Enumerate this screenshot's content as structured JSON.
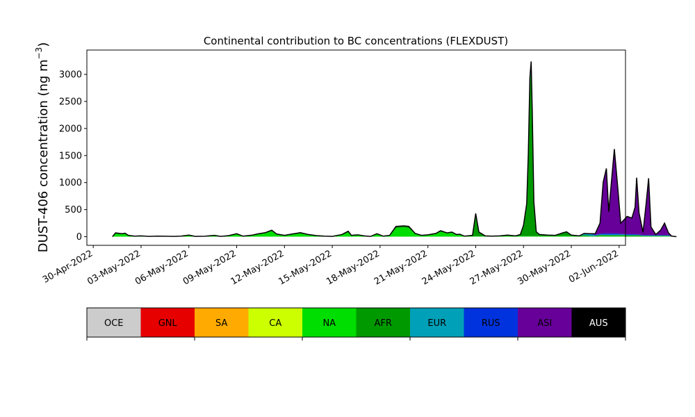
{
  "chart_data": {
    "type": "area",
    "title": "Continental contribution to BC concentrations (FLEXDUST)",
    "ylabel_main": "DUST-406 concentration (ng m",
    "ylabel_exp": "−3",
    "ylabel_close": ")",
    "xlabel": "",
    "x_tick_labels": [
      "30-Apr-2022",
      "03-May-2022",
      "06-May-2022",
      "09-May-2022",
      "12-May-2022",
      "15-May-2022",
      "18-May-2022",
      "21-May-2022",
      "24-May-2022",
      "27-May-2022",
      "30-May-2022",
      "02-Jun-2022"
    ],
    "x_tick_days": [
      0,
      3,
      6,
      9,
      12,
      15,
      18,
      21,
      24,
      27,
      30,
      33
    ],
    "x_range_days": [
      -0.4,
      33.4
    ],
    "y_ticks": [
      0,
      500,
      1000,
      1500,
      2000,
      2500,
      3000
    ],
    "ylim": [
      -160,
      3450
    ],
    "regions": [
      {
        "name": "OCE",
        "color": "#cccccc",
        "label_color": "#000000"
      },
      {
        "name": "GNL",
        "color": "#e60000",
        "label_color": "#000000"
      },
      {
        "name": "SA",
        "color": "#ffaa00",
        "label_color": "#000000"
      },
      {
        "name": "CA",
        "color": "#ccff00",
        "label_color": "#000000"
      },
      {
        "name": "NA",
        "color": "#00dd00",
        "label_color": "#000000"
      },
      {
        "name": "AFR",
        "color": "#009900",
        "label_color": "#000000"
      },
      {
        "name": "EUR",
        "color": "#00a0b8",
        "label_color": "#000000"
      },
      {
        "name": "RUS",
        "color": "#0033dd",
        "label_color": "#000000"
      },
      {
        "name": "ASI",
        "color": "#660099",
        "label_color": "#000000"
      },
      {
        "name": "AUS",
        "color": "#000000",
        "label_color": "#ffffff"
      }
    ],
    "stack_points": [
      [
        1.2,
        0,
        0,
        0,
        0,
        0,
        0,
        0
      ],
      [
        1.4,
        0,
        60,
        10,
        0,
        0,
        0,
        0
      ],
      [
        1.8,
        0,
        45,
        10,
        0,
        0,
        0,
        0
      ],
      [
        2.0,
        0,
        55,
        10,
        0,
        0,
        0,
        0
      ],
      [
        2.2,
        0,
        20,
        5,
        0,
        0,
        0,
        0
      ],
      [
        2.6,
        0,
        10,
        0,
        0,
        0,
        0,
        0
      ],
      [
        3.0,
        0,
        15,
        0,
        0,
        0,
        0,
        0
      ],
      [
        3.5,
        0,
        5,
        0,
        0,
        0,
        0,
        0
      ],
      [
        4.0,
        0,
        10,
        0,
        0,
        0,
        0,
        0
      ],
      [
        4.5,
        0,
        8,
        0,
        0,
        0,
        0,
        0
      ],
      [
        5.0,
        0,
        5,
        0,
        0,
        0,
        0,
        0
      ],
      [
        5.5,
        0,
        10,
        0,
        0,
        0,
        0,
        0
      ],
      [
        6.0,
        0,
        30,
        0,
        0,
        0,
        0,
        0
      ],
      [
        6.4,
        0,
        5,
        0,
        0,
        0,
        0,
        0
      ],
      [
        7.0,
        0,
        8,
        0,
        0,
        0,
        0,
        0
      ],
      [
        7.6,
        0,
        25,
        0,
        0,
        0,
        0,
        0
      ],
      [
        8.0,
        0,
        5,
        0,
        0,
        0,
        0,
        0
      ],
      [
        8.5,
        0,
        20,
        0,
        0,
        0,
        0,
        0
      ],
      [
        9.0,
        0,
        55,
        0,
        0,
        0,
        0,
        0
      ],
      [
        9.4,
        0,
        10,
        0,
        0,
        0,
        0,
        0
      ],
      [
        10.0,
        0,
        20,
        10,
        0,
        0,
        0,
        0
      ],
      [
        10.3,
        0,
        40,
        10,
        0,
        0,
        0,
        0
      ],
      [
        10.8,
        0,
        60,
        15,
        0,
        0,
        0,
        0
      ],
      [
        11.2,
        0,
        100,
        20,
        0,
        0,
        0,
        0
      ],
      [
        11.5,
        0,
        40,
        10,
        0,
        0,
        0,
        0
      ],
      [
        12.0,
        0,
        20,
        5,
        0,
        0,
        0,
        0
      ],
      [
        12.5,
        0,
        40,
        10,
        0,
        0,
        0,
        0
      ],
      [
        13.0,
        0,
        60,
        15,
        0,
        0,
        0,
        0
      ],
      [
        13.5,
        0,
        30,
        10,
        0,
        0,
        0,
        0
      ],
      [
        14.0,
        0,
        15,
        5,
        0,
        0,
        0,
        0
      ],
      [
        14.5,
        0,
        10,
        0,
        0,
        0,
        0,
        0
      ],
      [
        15.0,
        0,
        5,
        0,
        0,
        0,
        0,
        0
      ],
      [
        15.6,
        0,
        30,
        10,
        0,
        0,
        0,
        0
      ],
      [
        16.0,
        0,
        80,
        20,
        0,
        0,
        0,
        0
      ],
      [
        16.2,
        0,
        20,
        5,
        0,
        0,
        0,
        0
      ],
      [
        16.6,
        0,
        30,
        5,
        0,
        0,
        0,
        0
      ],
      [
        17.0,
        0,
        15,
        0,
        0,
        0,
        0,
        0
      ],
      [
        17.4,
        0,
        5,
        0,
        0,
        0,
        0,
        0
      ],
      [
        17.8,
        0,
        45,
        10,
        0,
        0,
        0,
        0
      ],
      [
        18.2,
        0,
        10,
        0,
        0,
        0,
        0,
        0
      ],
      [
        18.6,
        0,
        20,
        5,
        0,
        0,
        0,
        0
      ],
      [
        19.0,
        0,
        160,
        30,
        0,
        0,
        0,
        0
      ],
      [
        19.5,
        0,
        170,
        30,
        0,
        0,
        0,
        0
      ],
      [
        19.8,
        0,
        160,
        30,
        0,
        0,
        0,
        0
      ],
      [
        20.2,
        0,
        50,
        10,
        0,
        0,
        0,
        0
      ],
      [
        20.6,
        0,
        20,
        5,
        0,
        0,
        0,
        0
      ],
      [
        21.0,
        0,
        30,
        5,
        0,
        0,
        0,
        0
      ],
      [
        21.5,
        0,
        50,
        10,
        0,
        0,
        0,
        0
      ],
      [
        21.8,
        0,
        90,
        20,
        0,
        0,
        0,
        0
      ],
      [
        22.2,
        0,
        60,
        10,
        0,
        0,
        0,
        0
      ],
      [
        22.5,
        0,
        70,
        15,
        0,
        0,
        0,
        0
      ],
      [
        22.8,
        0,
        30,
        10,
        0,
        0,
        0,
        0
      ],
      [
        23.0,
        0,
        40,
        5,
        0,
        0,
        0,
        0
      ],
      [
        23.3,
        0,
        10,
        0,
        0,
        0,
        0,
        0
      ],
      [
        23.8,
        0,
        5,
        20,
        0,
        0,
        0,
        0
      ],
      [
        24.0,
        0,
        10,
        420,
        0,
        0,
        0,
        0
      ],
      [
        24.2,
        0,
        5,
        80,
        0,
        0,
        0,
        0
      ],
      [
        24.6,
        0,
        5,
        10,
        0,
        0,
        0,
        0
      ],
      [
        25.0,
        0,
        5,
        5,
        0,
        0,
        0,
        0
      ],
      [
        25.5,
        0,
        5,
        10,
        0,
        0,
        0,
        0
      ],
      [
        26.0,
        0,
        10,
        20,
        0,
        0,
        0,
        0
      ],
      [
        26.5,
        0,
        5,
        10,
        0,
        0,
        0,
        0
      ],
      [
        26.8,
        0,
        10,
        30,
        0,
        0,
        0,
        0
      ],
      [
        27.0,
        0,
        10,
        200,
        0,
        0,
        0,
        0
      ],
      [
        27.2,
        0,
        10,
        600,
        0,
        0,
        0,
        0
      ],
      [
        27.3,
        0,
        10,
        1500,
        10,
        0,
        0,
        0
      ],
      [
        27.4,
        0,
        10,
        2800,
        80,
        50,
        0,
        0
      ],
      [
        27.48,
        0,
        10,
        3050,
        100,
        80,
        0,
        0
      ],
      [
        27.55,
        0,
        10,
        2200,
        50,
        50,
        0,
        0
      ],
      [
        27.65,
        0,
        10,
        600,
        20,
        10,
        0,
        0
      ],
      [
        27.8,
        0,
        10,
        80,
        0,
        0,
        0,
        0
      ],
      [
        28.0,
        0,
        10,
        30,
        0,
        0,
        0,
        0
      ],
      [
        28.5,
        0,
        10,
        20,
        0,
        0,
        0,
        0
      ],
      [
        29.0,
        0,
        10,
        15,
        0,
        0,
        0,
        0
      ],
      [
        29.5,
        0,
        15,
        60,
        0,
        0,
        0,
        0
      ],
      [
        29.7,
        0,
        15,
        70,
        0,
        5,
        0,
        0
      ],
      [
        30.0,
        0,
        10,
        20,
        0,
        0,
        0,
        0
      ],
      [
        30.5,
        0,
        5,
        10,
        0,
        0,
        0,
        0
      ],
      [
        30.8,
        0,
        10,
        20,
        20,
        10,
        0,
        0
      ],
      [
        31.2,
        0,
        5,
        10,
        30,
        10,
        0,
        0
      ],
      [
        31.5,
        0,
        5,
        10,
        10,
        10,
        20,
        0
      ],
      [
        31.8,
        0,
        10,
        20,
        10,
        10,
        200,
        0
      ],
      [
        32.0,
        0,
        10,
        20,
        10,
        20,
        950,
        0
      ],
      [
        32.2,
        0,
        10,
        20,
        10,
        20,
        1200,
        0
      ],
      [
        32.35,
        0,
        10,
        20,
        10,
        20,
        400,
        0
      ],
      [
        32.5,
        0,
        10,
        20,
        10,
        20,
        900,
        0
      ],
      [
        32.7,
        0,
        10,
        20,
        10,
        20,
        1560,
        0
      ],
      [
        32.9,
        0,
        10,
        20,
        10,
        20,
        900,
        0
      ],
      [
        33.1,
        0,
        10,
        20,
        10,
        10,
        200,
        0
      ],
      [
        33.3,
        0,
        10,
        20,
        10,
        10,
        260,
        0
      ],
      [
        33.5,
        0,
        5,
        20,
        10,
        10,
        330,
        0
      ],
      [
        33.8,
        0,
        5,
        20,
        10,
        10,
        300,
        0
      ],
      [
        34.0,
        0,
        5,
        20,
        10,
        10,
        500,
        0
      ],
      [
        34.1,
        0,
        5,
        20,
        5,
        10,
        1050,
        0
      ],
      [
        34.25,
        0,
        5,
        20,
        5,
        10,
        400,
        0
      ],
      [
        34.5,
        0,
        5,
        10,
        5,
        10,
        50,
        0
      ],
      [
        34.7,
        0,
        5,
        10,
        5,
        10,
        600,
        0
      ],
      [
        34.85,
        0,
        5,
        10,
        5,
        10,
        1050,
        0
      ],
      [
        35.0,
        0,
        5,
        10,
        5,
        10,
        150,
        0
      ],
      [
        35.3,
        0,
        5,
        10,
        5,
        10,
        10,
        0
      ],
      [
        35.6,
        0,
        5,
        10,
        5,
        10,
        90,
        0
      ],
      [
        35.85,
        0,
        5,
        10,
        5,
        10,
        220,
        0
      ],
      [
        36.1,
        0,
        5,
        10,
        5,
        10,
        40,
        0
      ],
      [
        36.3,
        0,
        0,
        0,
        0,
        0,
        10,
        0
      ],
      [
        36.6,
        0,
        0,
        0,
        0,
        0,
        0,
        0
      ]
    ]
  }
}
